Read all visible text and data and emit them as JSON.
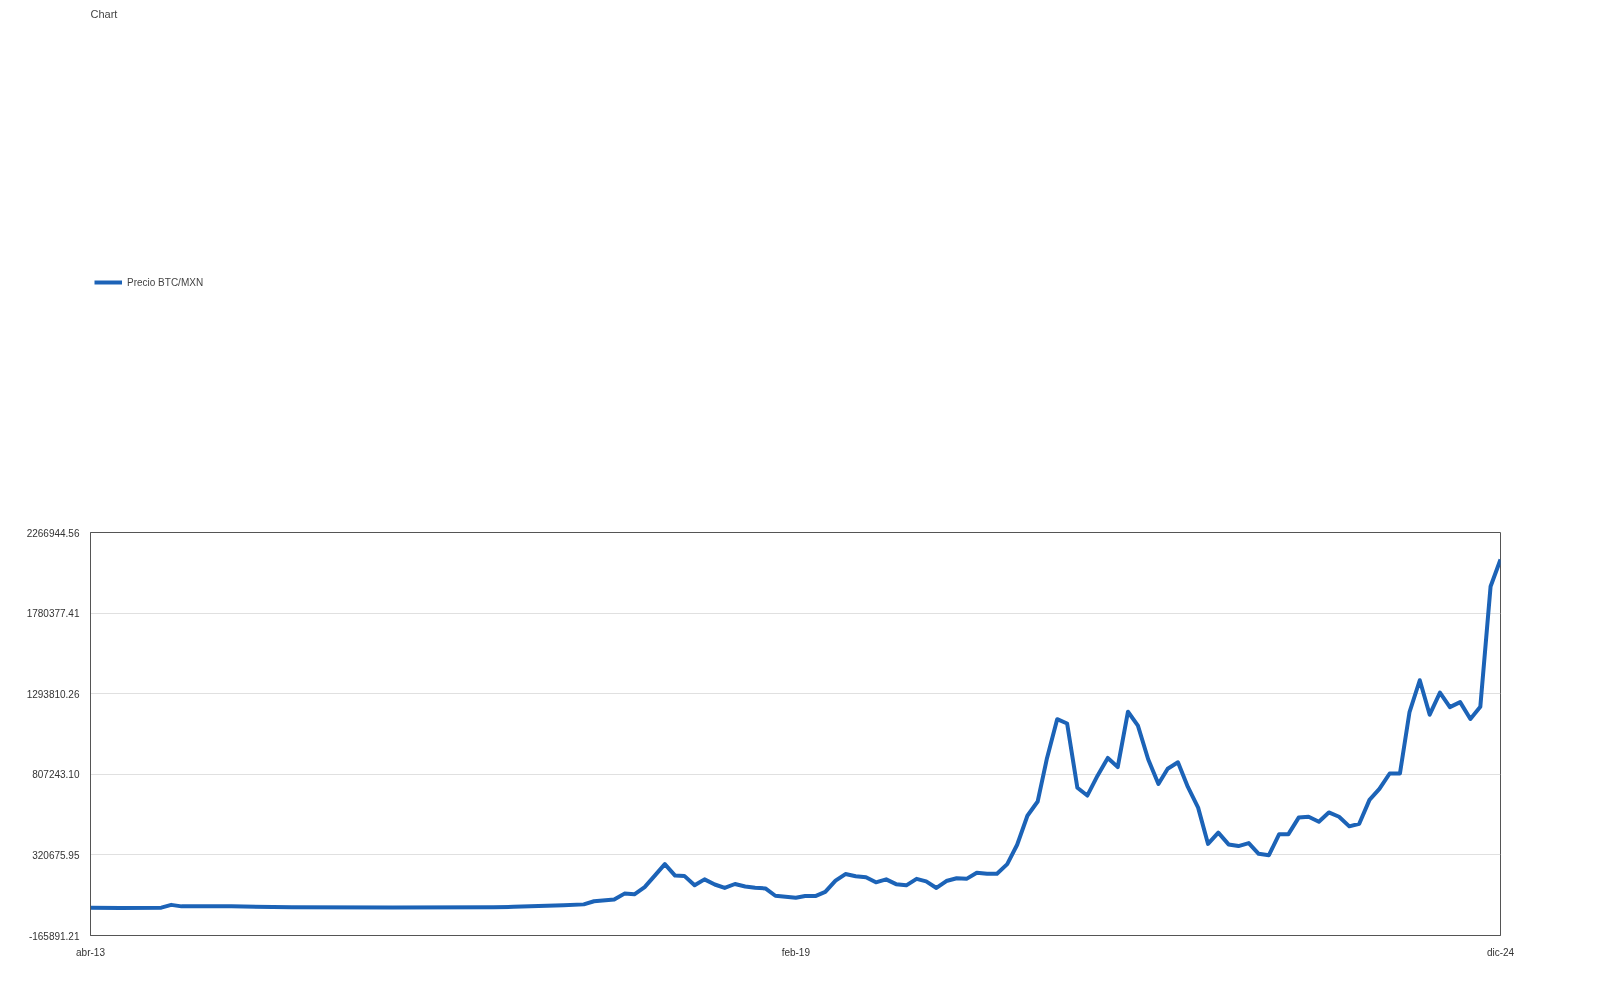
{
  "chart_data": {
    "type": "line",
    "title": "Chart",
    "legend": "top",
    "grid": "y",
    "marker": "none",
    "line_style": "solid",
    "xlim": [
      "2013-04",
      "2024-12"
    ],
    "xticks": [
      {
        "value": "2013-04",
        "label": "abr-13"
      },
      {
        "value": "2019-02",
        "label": "feb-19"
      },
      {
        "value": "2024-12",
        "label": "dic-24"
      }
    ],
    "ylim": [
      -165891.21,
      2266944.56
    ],
    "yticks": [
      -165891.21,
      320675.95,
      {
        "value": 807243.1,
        "label": "807243.10"
      },
      1293810.26,
      1780377.41,
      2266944.56
    ],
    "x": [
      "2013-04",
      "2013-07",
      "2013-11",
      "2013-12",
      "2014-01",
      "2014-06",
      "2014-12",
      "2015-10",
      "2016-08",
      "2016-10",
      "2017-03",
      "2017-05",
      "2017-06",
      "2017-08",
      "2017-09",
      "2017-10",
      "2017-11",
      "2017-12",
      "2018-01",
      "2018-02",
      "2018-03",
      "2018-04",
      "2018-05",
      "2018-06",
      "2018-07",
      "2018-08",
      "2018-09",
      "2018-10",
      "2018-11",
      "2018-12",
      "2019-01",
      "2019-02",
      "2019-03",
      "2019-04",
      "2019-05",
      "2019-06",
      "2019-07",
      "2019-08",
      "2019-09",
      "2019-10",
      "2019-11",
      "2019-12",
      "2020-01",
      "2020-02",
      "2020-03",
      "2020-04",
      "2020-05",
      "2020-06",
      "2020-07",
      "2020-08",
      "2020-09",
      "2020-10",
      "2020-11",
      "2020-12",
      "2021-01",
      "2021-02",
      "2021-03",
      "2021-04",
      "2021-05",
      "2021-06",
      "2021-07",
      "2021-08",
      "2021-09",
      "2021-10",
      "2021-11",
      "2021-12",
      "2022-01",
      "2022-02",
      "2022-03",
      "2022-04",
      "2022-05",
      "2022-06",
      "2022-07",
      "2022-08",
      "2022-09",
      "2022-10",
      "2022-11",
      "2022-12",
      "2023-01",
      "2023-02",
      "2023-03",
      "2023-04",
      "2023-05",
      "2023-06",
      "2023-07",
      "2023-08",
      "2023-09",
      "2023-10",
      "2023-11",
      "2023-12",
      "2024-01",
      "2024-02",
      "2024-03",
      "2024-04",
      "2024-05",
      "2024-06",
      "2024-07",
      "2024-08",
      "2024-09",
      "2024-10",
      "2024-11",
      "2024-12"
    ],
    "series": [
      {
        "name": "Precio BTC/MXN",
        "color": "#1c63b7",
        "values": [
          1000,
          0,
          2000,
          19000,
          10000,
          10000,
          4000,
          3000,
          5000,
          7000,
          17000,
          22000,
          41000,
          51000,
          87000,
          83000,
          126000,
          194000,
          265000,
          196000,
          194000,
          137000,
          173000,
          142000,
          121000,
          145000,
          130000,
          123000,
          118000,
          74000,
          68000,
          62000,
          72000,
          72000,
          97000,
          165000,
          205000,
          192000,
          186000,
          155000,
          173000,
          144000,
          137000,
          176000,
          161000,
          121000,
          163000,
          180000,
          176000,
          213000,
          207000,
          207000,
          265000,
          382000,
          557000,
          643000,
          903000,
          1140000,
          1114000,
          726000,
          679000,
          799000,
          906000,
          851000,
          1185000,
          1101000,
          898000,
          749000,
          841000,
          880000,
          731000,
          606000,
          387000,
          455000,
          384000,
          374000,
          392000,
          327000,
          319000,
          446000,
          446000,
          546000,
          551000,
          521000,
          577000,
          551000,
          493000,
          509000,
          653000,
          719000,
          812000,
          812000,
          1183000,
          1375000,
          1167000,
          1300000,
          1213000,
          1243000,
          1141000,
          1215000,
          1941000,
          2104000
        ]
      }
    ]
  }
}
